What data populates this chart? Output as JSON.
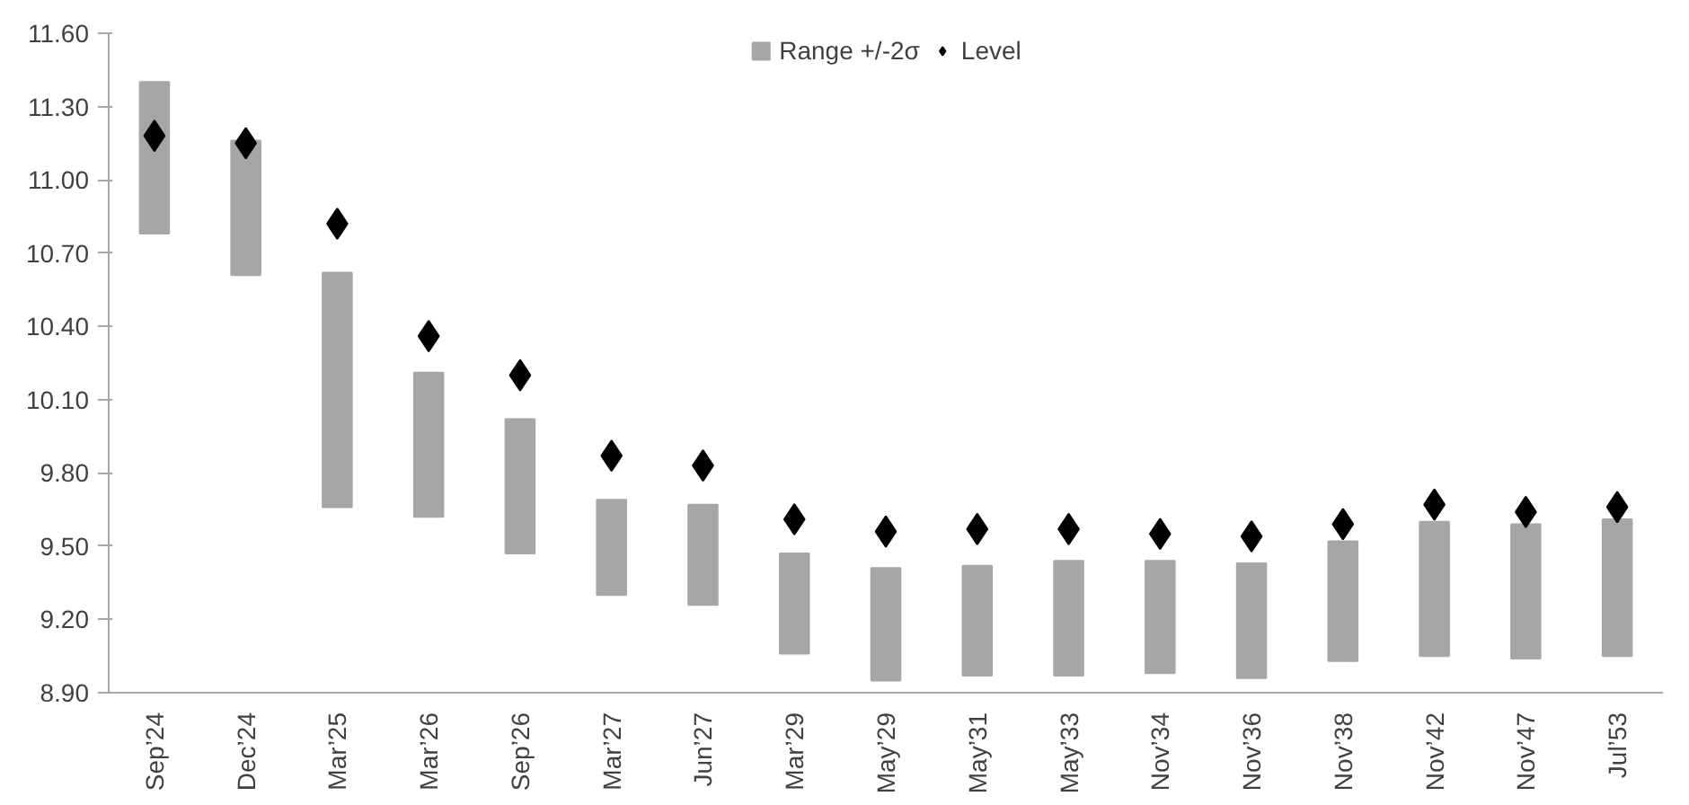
{
  "chart_data": {
    "type": "bar",
    "categories": [
      "Sep’24",
      "Dec’24",
      "Mar’25",
      "Mar’26",
      "Sep’26",
      "Mar’27",
      "Jun’27",
      "Mar’29",
      "May’29",
      "May’31",
      "May’33",
      "Nov’34",
      "Nov’36",
      "Nov’38",
      "Nov’42",
      "Nov’47",
      "Jul’53"
    ],
    "series": [
      {
        "name": "Range +/-2σ",
        "color": "#a6a6a6",
        "base": [
          10.78,
          10.61,
          9.66,
          9.62,
          9.47,
          9.3,
          9.26,
          9.06,
          8.95,
          8.97,
          8.97,
          8.98,
          8.96,
          9.03,
          9.05,
          9.04,
          9.05
        ],
        "values": [
          0.62,
          0.55,
          0.96,
          0.59,
          0.55,
          0.39,
          0.41,
          0.41,
          0.46,
          0.45,
          0.47,
          0.46,
          0.47,
          0.49,
          0.55,
          0.55,
          0.56
        ]
      },
      {
        "name": "Level",
        "type": "scatter",
        "color": "#000000",
        "marker": "diamond",
        "values": [
          11.18,
          11.15,
          10.82,
          10.36,
          10.2,
          9.87,
          9.83,
          9.61,
          9.56,
          9.57,
          9.57,
          9.55,
          9.54,
          9.59,
          9.67,
          9.64,
          9.66
        ]
      }
    ],
    "ylim": [
      8.9,
      11.6
    ],
    "yticks": [
      {
        "value": 8.9,
        "label": "8.90"
      },
      {
        "value": 9.2,
        "label": "9.20"
      },
      {
        "value": 9.5,
        "label": "9.50"
      },
      {
        "value": 9.8,
        "label": "9.80"
      },
      {
        "value": 10.1,
        "label": "10.10"
      },
      {
        "value": 10.4,
        "label": "10.40"
      },
      {
        "value": 10.7,
        "label": "10.70"
      },
      {
        "value": 11.0,
        "label": "11.00"
      },
      {
        "value": 11.3,
        "label": "11.30"
      },
      {
        "value": 11.6,
        "label": "11.60"
      }
    ],
    "grid": false,
    "legend": "top"
  }
}
